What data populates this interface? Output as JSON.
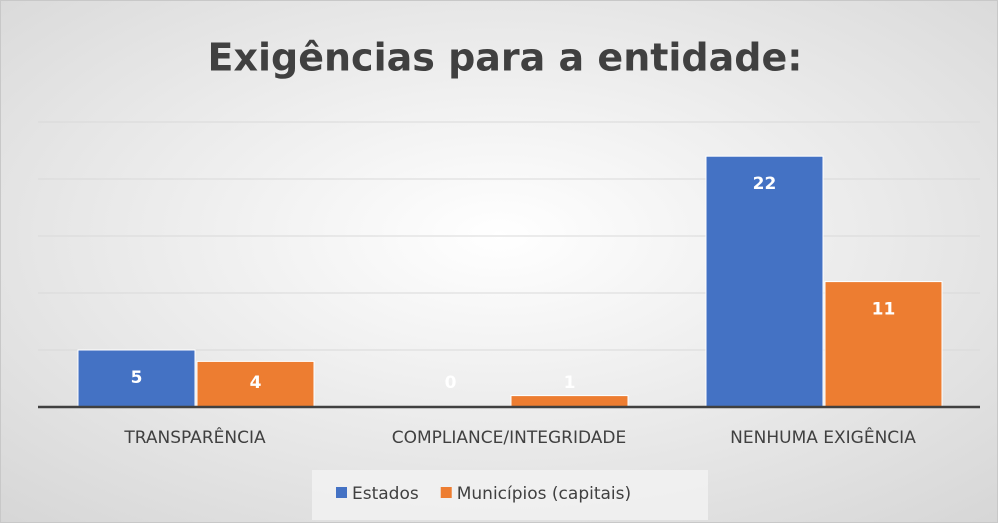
{
  "chart_data": {
    "type": "bar",
    "title": "Exigências para a entidade:",
    "categories": [
      "TRANSPARÊNCIA",
      "COMPLIANCE/INTEGRIDADE",
      "NENHUMA EXIGÊNCIA"
    ],
    "series": [
      {
        "name": "Estados",
        "color": "#4472c4",
        "values": [
          5,
          0,
          22
        ]
      },
      {
        "name": "Municípios (capitais)",
        "color": "#ed7d31",
        "values": [
          4,
          1,
          11
        ]
      }
    ],
    "ylim": [
      0,
      25
    ],
    "yticks": [
      0,
      5,
      10,
      15,
      20,
      25
    ],
    "grid": true,
    "legend": "bottom"
  }
}
